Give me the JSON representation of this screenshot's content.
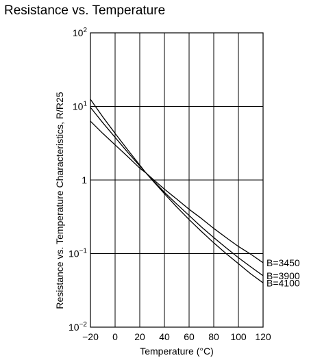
{
  "title": "Resistance vs. Temperature",
  "chart_data": {
    "type": "line",
    "title": "Resistance vs. Temperature",
    "xlabel": "Temperature (°C)",
    "ylabel": "Resistance vs. Temperature Characteristics, R/R25",
    "xlim": [
      -20,
      120
    ],
    "ylim": [
      0.01,
      100
    ],
    "yscale": "log",
    "grid": true,
    "x_ticks": [
      -20,
      0,
      20,
      40,
      60,
      80,
      100,
      120
    ],
    "x_tick_labels": [
      "−20",
      "0",
      "20",
      "40",
      "60",
      "80",
      "100",
      "120"
    ],
    "y_ticks": [
      {
        "value": 0.01,
        "base": "10",
        "exp": "−2"
      },
      {
        "value": 0.1,
        "base": "10",
        "exp": "−1"
      },
      {
        "value": 1,
        "base": "1",
        "exp": ""
      },
      {
        "value": 10,
        "base": "10",
        "exp": "1"
      },
      {
        "value": 100,
        "base": "10",
        "exp": "2"
      }
    ],
    "x": [
      -20,
      -10,
      0,
      10,
      20,
      25,
      30,
      40,
      50,
      60,
      70,
      80,
      90,
      100,
      110,
      120
    ],
    "series": [
      {
        "name": "B=3450",
        "values": [
          6.3,
          4.3,
          3.0,
          2.1,
          1.45,
          1.25,
          1.05,
          0.75,
          0.55,
          0.4,
          0.3,
          0.22,
          0.165,
          0.125,
          0.098,
          0.075
        ]
      },
      {
        "name": "B=3900",
        "values": [
          9.7,
          6.0,
          3.8,
          2.4,
          1.55,
          1.25,
          1.02,
          0.68,
          0.47,
          0.33,
          0.23,
          0.165,
          0.12,
          0.088,
          0.066,
          0.05
        ]
      },
      {
        "name": "B=4100",
        "values": [
          12.5,
          7.2,
          4.3,
          2.6,
          1.6,
          1.25,
          1.0,
          0.65,
          0.43,
          0.29,
          0.2,
          0.14,
          0.1,
          0.073,
          0.053,
          0.04
        ]
      }
    ]
  }
}
